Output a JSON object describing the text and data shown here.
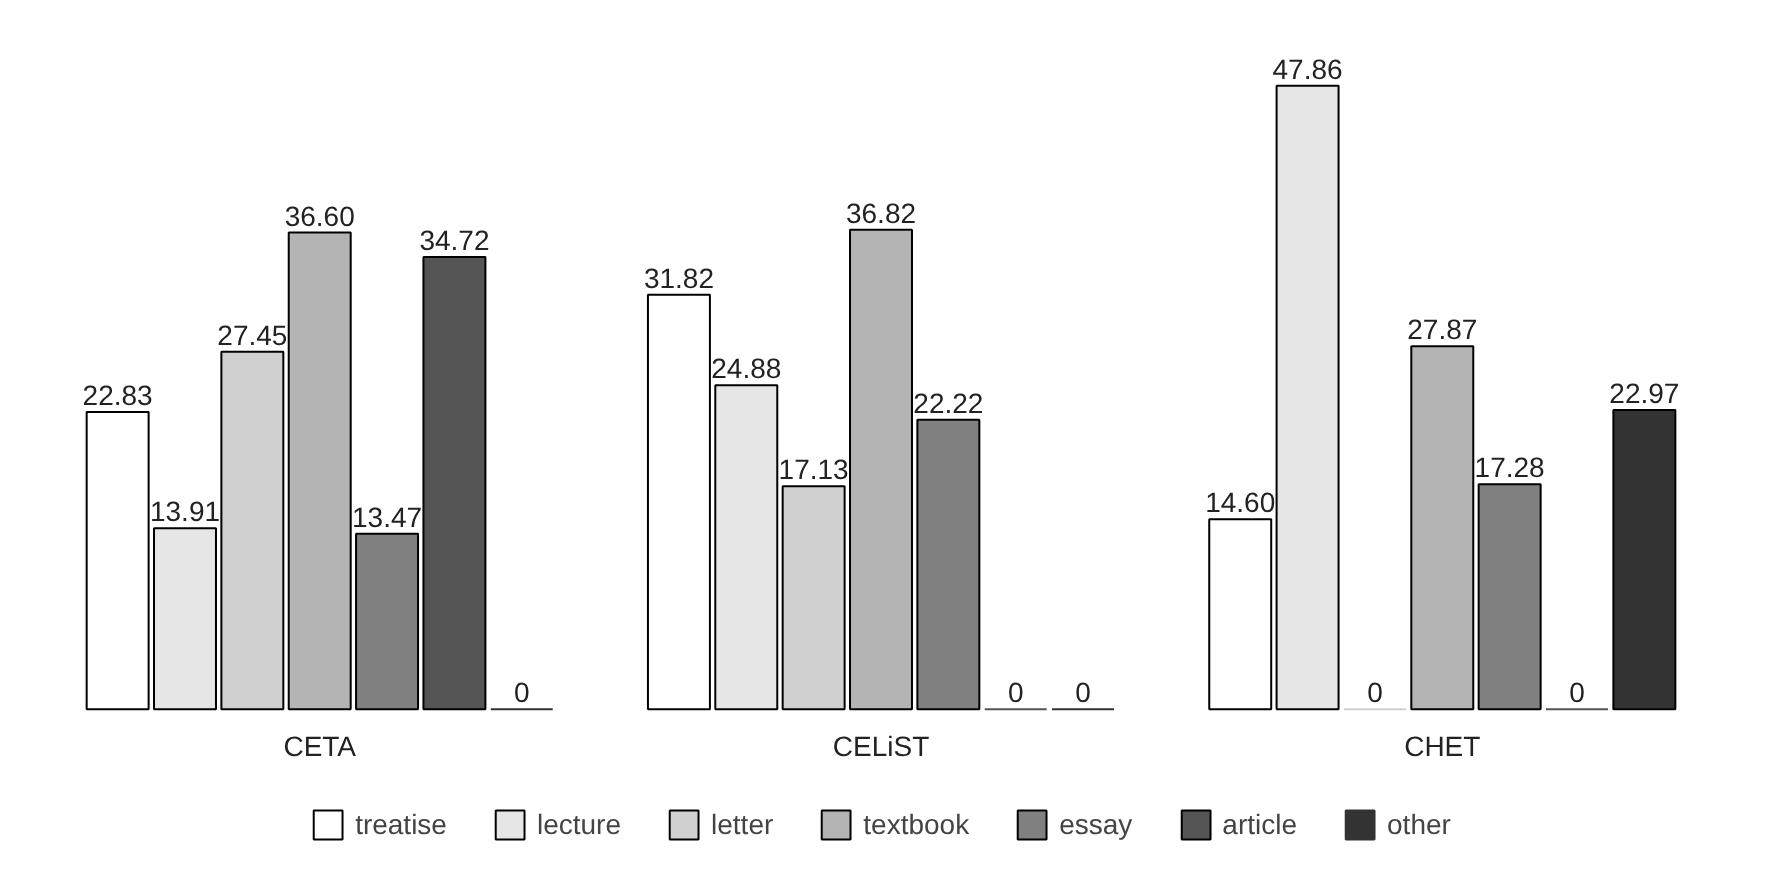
{
  "chart_data": {
    "type": "bar",
    "categories": [
      "CETA",
      "CELiST",
      "CHET"
    ],
    "series": [
      {
        "name": "treatise",
        "color": "#ffffff",
        "values": [
          22.83,
          31.82,
          14.6
        ],
        "value_labels": [
          "22.83",
          "31.82",
          "14.60"
        ]
      },
      {
        "name": "lecture",
        "color": "#e6e6e6",
        "values": [
          13.91,
          24.88,
          47.86
        ],
        "value_labels": [
          "13.91",
          "24.88",
          "47.86"
        ]
      },
      {
        "name": "letter",
        "color": "#d0d0d0",
        "values": [
          27.45,
          17.13,
          0
        ],
        "value_labels": [
          "27.45",
          "17.13",
          "0"
        ]
      },
      {
        "name": "textbook",
        "color": "#b4b4b4",
        "values": [
          36.6,
          36.82,
          27.87
        ],
        "value_labels": [
          "36.60",
          "36.82",
          "27.87"
        ]
      },
      {
        "name": "essay",
        "color": "#808080",
        "values": [
          13.47,
          22.22,
          17.28
        ],
        "value_labels": [
          "13.47",
          "22.22",
          "17.28"
        ]
      },
      {
        "name": "article",
        "color": "#555555",
        "values": [
          34.72,
          0,
          0
        ],
        "value_labels": [
          "34.72",
          "0",
          "0"
        ]
      },
      {
        "name": "other",
        "color": "#333333",
        "values": [
          0,
          0,
          22.97
        ],
        "value_labels": [
          "0",
          "0",
          "22.97"
        ]
      }
    ],
    "grid": false,
    "legend": "bottom"
  }
}
